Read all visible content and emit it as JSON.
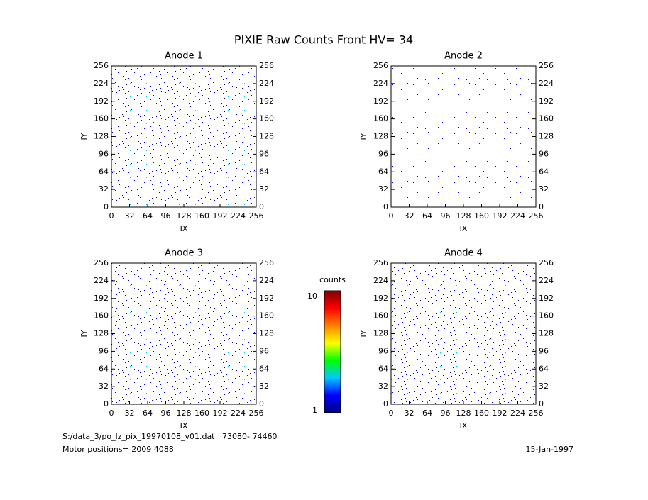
{
  "title": "PIXIE Raw Counts Front HV= 34",
  "chart_data": [
    {
      "type": "heatmap",
      "title": "Anode 1",
      "x_label": "IX",
      "y_label": "IY",
      "xlim": [
        0,
        256
      ],
      "ylim": [
        0,
        256
      ],
      "xticks": [
        0,
        32,
        64,
        96,
        128,
        160,
        192,
        224,
        256
      ],
      "yticks": [
        0,
        32,
        64,
        96,
        128,
        160,
        192,
        224,
        256
      ]
    },
    {
      "type": "heatmap",
      "title": "Anode 2",
      "x_label": "IX",
      "y_label": "IY",
      "xlim": [
        0,
        256
      ],
      "ylim": [
        0,
        256
      ],
      "xticks": [
        0,
        32,
        64,
        96,
        128,
        160,
        192,
        224,
        256
      ],
      "yticks": [
        0,
        32,
        64,
        96,
        128,
        160,
        192,
        224,
        256
      ]
    },
    {
      "type": "heatmap",
      "title": "Anode 3",
      "x_label": "IX",
      "y_label": "IY",
      "xlim": [
        0,
        256
      ],
      "ylim": [
        0,
        256
      ],
      "xticks": [
        0,
        32,
        64,
        96,
        128,
        160,
        192,
        224,
        256
      ],
      "yticks": [
        0,
        32,
        64,
        96,
        128,
        160,
        192,
        224,
        256
      ]
    },
    {
      "type": "heatmap",
      "title": "Anode 4",
      "x_label": "IX",
      "y_label": "IY",
      "xlim": [
        0,
        256
      ],
      "ylim": [
        0,
        256
      ],
      "xticks": [
        0,
        32,
        64,
        96,
        128,
        160,
        192,
        224,
        256
      ],
      "yticks": [
        0,
        32,
        64,
        96,
        128,
        160,
        192,
        224,
        256
      ]
    }
  ],
  "colorbar": {
    "label": "counts",
    "ylim": [
      1,
      10
    ],
    "yticks": [
      1,
      10
    ],
    "colors": [
      "#00007f",
      "#0000ff",
      "#00c8ff",
      "#00ff00",
      "#ffff00",
      "#ff8000",
      "#ff0000",
      "#7f0000"
    ]
  },
  "footer": {
    "file": "S:/data_3/po_lz_pix_19970108_v01.dat   73080- 74460",
    "motor": "Motor positions= 2009 4088",
    "date": "15-Jan-1997"
  }
}
